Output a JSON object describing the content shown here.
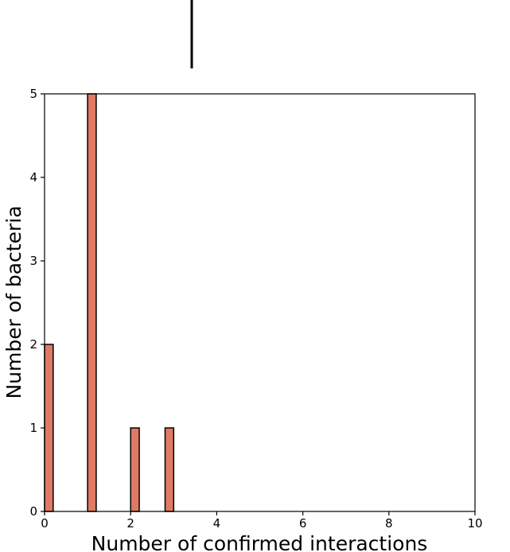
{
  "chart_data": {
    "type": "bar",
    "xlabel": "Number of confirmed interactions",
    "ylabel": "Number of bacteria",
    "xlim": [
      0,
      10
    ],
    "ylim": [
      0,
      5
    ],
    "xticks": [
      0,
      2,
      4,
      6,
      8,
      10
    ],
    "yticks": [
      0,
      1,
      2,
      3,
      4,
      5
    ],
    "bins": [
      {
        "x0": 0.0,
        "x1": 0.2,
        "value": 2
      },
      {
        "x0": 1.0,
        "x1": 1.2,
        "value": 5
      },
      {
        "x0": 2.0,
        "x1": 2.2,
        "value": 1
      },
      {
        "x0": 2.8,
        "x1": 3.0,
        "value": 1
      }
    ],
    "bar_color": "#e07a64",
    "edge_color": "#000000",
    "grid": false
  }
}
